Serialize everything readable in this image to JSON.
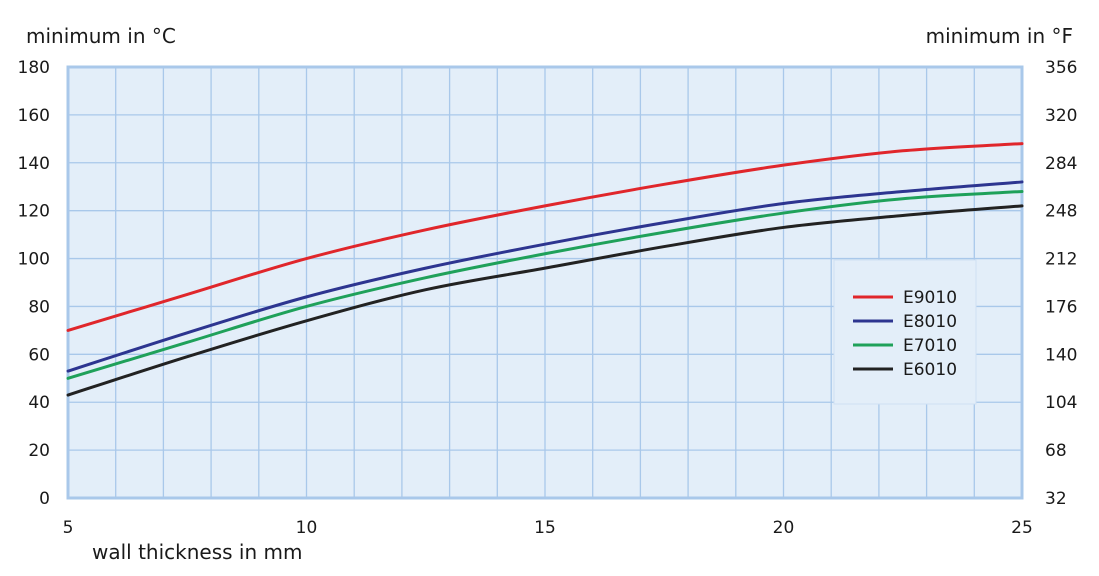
{
  "chart_data": {
    "type": "line",
    "ylabel_left": "minimum in °C",
    "ylabel_right": "minimum in °F",
    "xlabel": "wall thickness in mm",
    "xlim": [
      5,
      25
    ],
    "ylim": [
      0,
      180
    ],
    "x_ticks": [
      "5",
      "10",
      "15",
      "20",
      "25"
    ],
    "y_ticks_left": [
      "0",
      "20",
      "40",
      "60",
      "80",
      "100",
      "120",
      "140",
      "160",
      "180"
    ],
    "y_ticks_right": [
      "32",
      "68",
      "104",
      "140",
      "176",
      "212",
      "248",
      "284",
      "320",
      "356"
    ],
    "grid": true,
    "legend_position": "right",
    "x": [
      5,
      7.5,
      10,
      12.5,
      15,
      17.5,
      20,
      22.5,
      25
    ],
    "series": [
      {
        "name": "E9010",
        "color": "#e0262b",
        "values": [
          70,
          85,
          100,
          112,
          122,
          131,
          139,
          145,
          148
        ]
      },
      {
        "name": "E8010",
        "color": "#2d3590",
        "values": [
          53,
          69,
          84,
          96,
          106,
          115,
          123,
          128,
          132
        ]
      },
      {
        "name": "E7010",
        "color": "#1fa15a",
        "values": [
          50,
          65,
          80,
          92,
          102,
          111,
          119,
          125,
          128
        ]
      },
      {
        "name": "E6010",
        "color": "#222222",
        "values": [
          43,
          59,
          74,
          87,
          96,
          105,
          113,
          118,
          122
        ]
      }
    ]
  },
  "style": {
    "plot_bg": "#e3eef9",
    "grid_color": "#a9c8ea",
    "frame_color": "#a9c8ea",
    "legend_bg": "#e3eef9"
  }
}
